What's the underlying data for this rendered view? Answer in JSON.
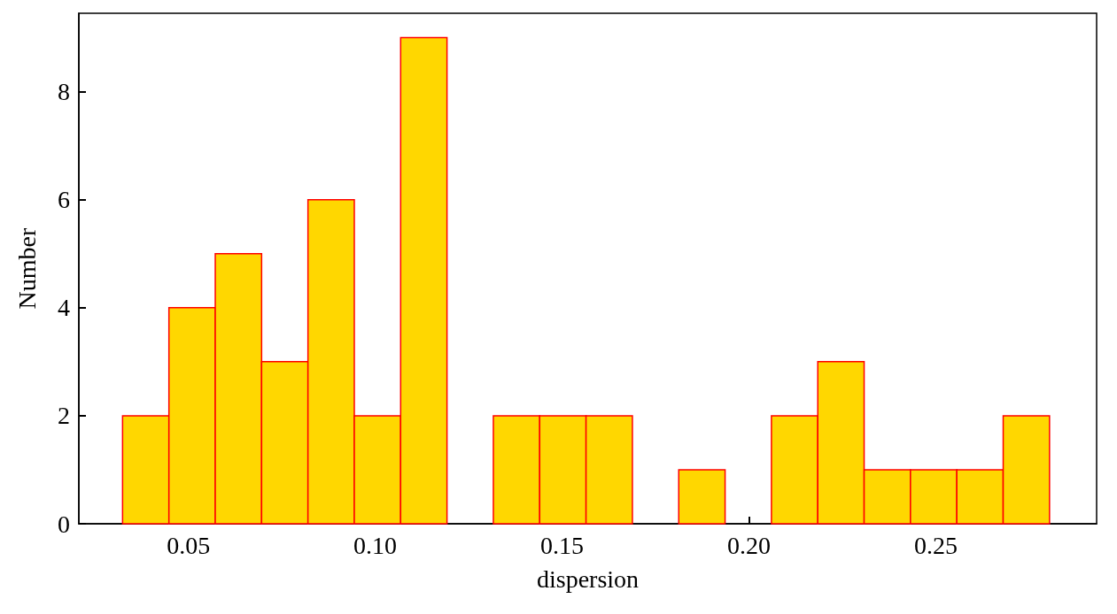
{
  "chart_data": {
    "type": "histogram",
    "xlabel": "dispersion",
    "ylabel": "Number",
    "color": "#ffd700",
    "bins": [
      0.0324,
      0.0448,
      0.0572,
      0.0696,
      0.082,
      0.0944,
      0.1068,
      0.1192,
      0.1316,
      0.144,
      0.1564,
      0.1688,
      0.1812,
      0.1936,
      0.206,
      0.2184,
      0.2308,
      0.2432,
      0.2556,
      0.268,
      0.2804
    ],
    "values": [
      2,
      4,
      5,
      3,
      6,
      2,
      9,
      0,
      2,
      2,
      2,
      0,
      1,
      0,
      2,
      3,
      1,
      1,
      1,
      2
    ],
    "xlim": [
      0.0207,
      0.293
    ],
    "xticks": [
      {
        "value": 0.05,
        "label": "0.05"
      },
      {
        "value": 0.1,
        "label": "0.10"
      },
      {
        "value": 0.15,
        "label": "0.15"
      },
      {
        "value": 0.2,
        "label": "0.20"
      },
      {
        "value": 0.25,
        "label": "0.25"
      }
    ],
    "ylim": [
      0,
      9.45
    ],
    "yticks": [
      0,
      2,
      4,
      6,
      8
    ],
    "grid": false
  }
}
